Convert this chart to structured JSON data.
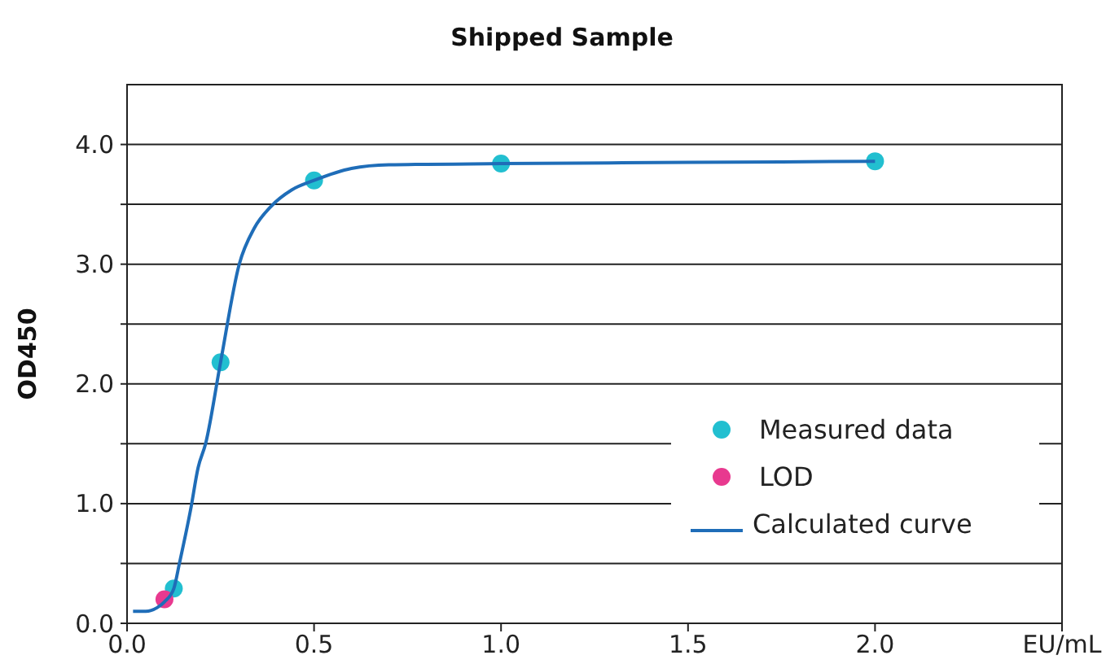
{
  "chart_data": {
    "type": "scatter",
    "title": "Shipped Sample",
    "ylabel": "OD450",
    "xlim": [
      0,
      2.5
    ],
    "xticks": [
      {
        "value": 0,
        "label": "0.0"
      },
      0.5,
      {
        "value": 1,
        "label": "1.0"
      },
      1.5,
      {
        "value": 2,
        "label": "2.0"
      },
      {
        "value": 2.5,
        "label": "EU/mL"
      }
    ],
    "ylim": [
      0,
      4.5
    ],
    "yticks": [
      {
        "value": 0,
        "label": "0.0"
      },
      {
        "value": 0.5,
        "label": null
      },
      {
        "value": 1,
        "label": "1.0"
      },
      {
        "value": 1.5,
        "label": null
      },
      {
        "value": 2,
        "label": "2.0"
      },
      {
        "value": 2.5,
        "label": null
      },
      {
        "value": 3,
        "label": "3.0"
      },
      {
        "value": 3.5,
        "label": null
      },
      {
        "value": 4,
        "label": "4.0"
      }
    ],
    "grid": "y",
    "legend": "bottom right",
    "series": [
      {
        "name": "Measured data",
        "marker": "circle",
        "color": "#22bfd0",
        "x": [
          0.125,
          0.25,
          0.5,
          1.0,
          2.0
        ],
        "values": [
          0.29,
          2.18,
          3.7,
          3.84,
          3.86
        ]
      },
      {
        "name": "LOD",
        "marker": "circle",
        "color": "#e8398f",
        "x": [
          0.1
        ],
        "values": [
          0.2
        ]
      },
      {
        "name": "Calculated curve",
        "type": "line",
        "marker": "none",
        "line_style": "solid",
        "color": "#1f6db8",
        "x": [
          0.016,
          0.05,
          0.08,
          0.1,
          0.125,
          0.14,
          0.17,
          0.19,
          0.21,
          0.25,
          0.3,
          0.34,
          0.384,
          0.44,
          0.5,
          0.6,
          0.7,
          1.0,
          1.5,
          2.0
        ],
        "values": [
          0.1,
          0.1,
          0.13,
          0.18,
          0.29,
          0.5,
          0.95,
          1.3,
          1.5,
          2.18,
          3.0,
          3.3,
          3.48,
          3.62,
          3.7,
          3.8,
          3.83,
          3.84,
          3.85,
          3.86
        ]
      }
    ]
  }
}
